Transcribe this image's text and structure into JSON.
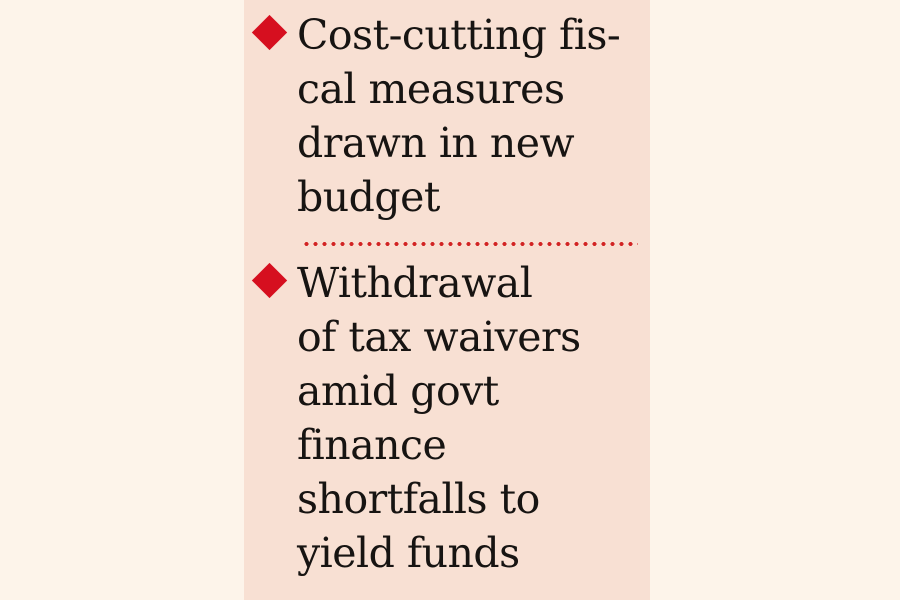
{
  "panel": {
    "description": "news-highlights-box",
    "background_color": "#f8e0d3",
    "outer_background_color": "#fdf4ea"
  },
  "colors": {
    "diamond_red": "#d60f1f",
    "dotted_divider_red": "#d22424",
    "text_color": "#171412"
  },
  "bullets": [
    {
      "marker": "red-diamond",
      "text": "Cost-cutting fiscal measures drawn in new budget",
      "lines": {
        "0": "Cost-cutting fis-",
        "1": "cal measures",
        "2": "drawn in new",
        "3": "budget"
      }
    },
    {
      "marker": "red-diamond",
      "text": "Withdrawal of tax waivers amid govt finance shortfalls to yield funds",
      "lines": {
        "0": "Withdrawal",
        "1": "of tax waivers",
        "2": "amid govt",
        "3": "finance",
        "4": "shortfalls to",
        "5": "yield funds"
      }
    }
  ],
  "divider": {
    "style": "red dotted line"
  }
}
